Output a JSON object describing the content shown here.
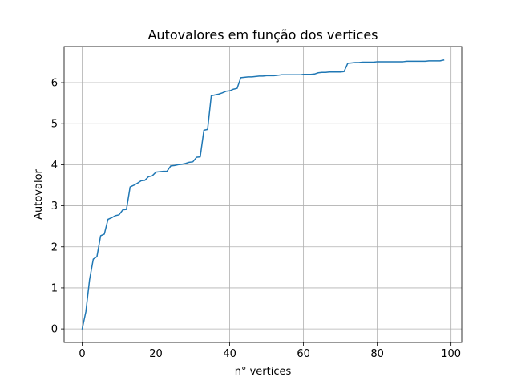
{
  "chart_data": {
    "type": "line",
    "title": "Autovalores em função dos vertices",
    "xlabel": "n° vertices",
    "ylabel": "Autovalor",
    "xlim": [
      -4.9,
      102.9
    ],
    "ylim": [
      -0.33,
      6.88
    ],
    "xticks": [
      0,
      20,
      40,
      60,
      80,
      100
    ],
    "yticks": [
      0,
      1,
      2,
      3,
      4,
      5,
      6
    ],
    "xtick_labels": [
      "0",
      "20",
      "40",
      "60",
      "80",
      "100"
    ],
    "ytick_labels": [
      "0",
      "1",
      "2",
      "3",
      "4",
      "5",
      "6"
    ],
    "grid": true,
    "series_color": "#1f77b4",
    "series": [
      {
        "x": [
          0,
          1,
          2,
          3,
          4,
          5,
          6,
          7,
          8,
          9,
          10,
          11,
          12,
          13,
          14,
          15,
          16,
          17,
          18,
          19,
          20,
          21,
          22,
          23,
          24,
          25,
          26,
          27,
          28,
          29,
          30,
          31,
          32,
          33,
          34,
          35,
          36,
          37,
          38,
          39,
          40,
          41,
          42,
          43,
          44,
          45,
          46,
          47,
          48,
          49,
          50,
          51,
          52,
          53,
          54,
          55,
          56,
          57,
          58,
          59,
          60,
          61,
          62,
          63,
          64,
          65,
          66,
          67,
          68,
          69,
          70,
          71,
          72,
          73,
          74,
          75,
          76,
          77,
          78,
          79,
          80,
          81,
          82,
          83,
          84,
          85,
          86,
          87,
          88,
          89,
          90,
          91,
          92,
          93,
          94,
          95,
          96,
          97,
          98
        ],
        "y": [
          0.0,
          0.42,
          1.2,
          1.7,
          1.76,
          2.27,
          2.31,
          2.67,
          2.71,
          2.76,
          2.78,
          2.9,
          2.91,
          3.46,
          3.5,
          3.55,
          3.61,
          3.62,
          3.71,
          3.73,
          3.82,
          3.83,
          3.84,
          3.84,
          3.97,
          3.98,
          4.0,
          4.01,
          4.03,
          4.06,
          4.07,
          4.18,
          4.19,
          4.84,
          4.86,
          5.68,
          5.7,
          5.72,
          5.75,
          5.79,
          5.8,
          5.84,
          5.86,
          6.12,
          6.13,
          6.14,
          6.14,
          6.15,
          6.16,
          6.16,
          6.17,
          6.17,
          6.17,
          6.18,
          6.19,
          6.19,
          6.19,
          6.19,
          6.19,
          6.19,
          6.2,
          6.2,
          6.2,
          6.21,
          6.24,
          6.25,
          6.25,
          6.26,
          6.26,
          6.26,
          6.26,
          6.27,
          6.47,
          6.48,
          6.49,
          6.49,
          6.5,
          6.5,
          6.5,
          6.5,
          6.51,
          6.51,
          6.51,
          6.51,
          6.51,
          6.51,
          6.51,
          6.51,
          6.52,
          6.52,
          6.52,
          6.52,
          6.52,
          6.52,
          6.53,
          6.53,
          6.53,
          6.53,
          6.55
        ]
      }
    ]
  }
}
